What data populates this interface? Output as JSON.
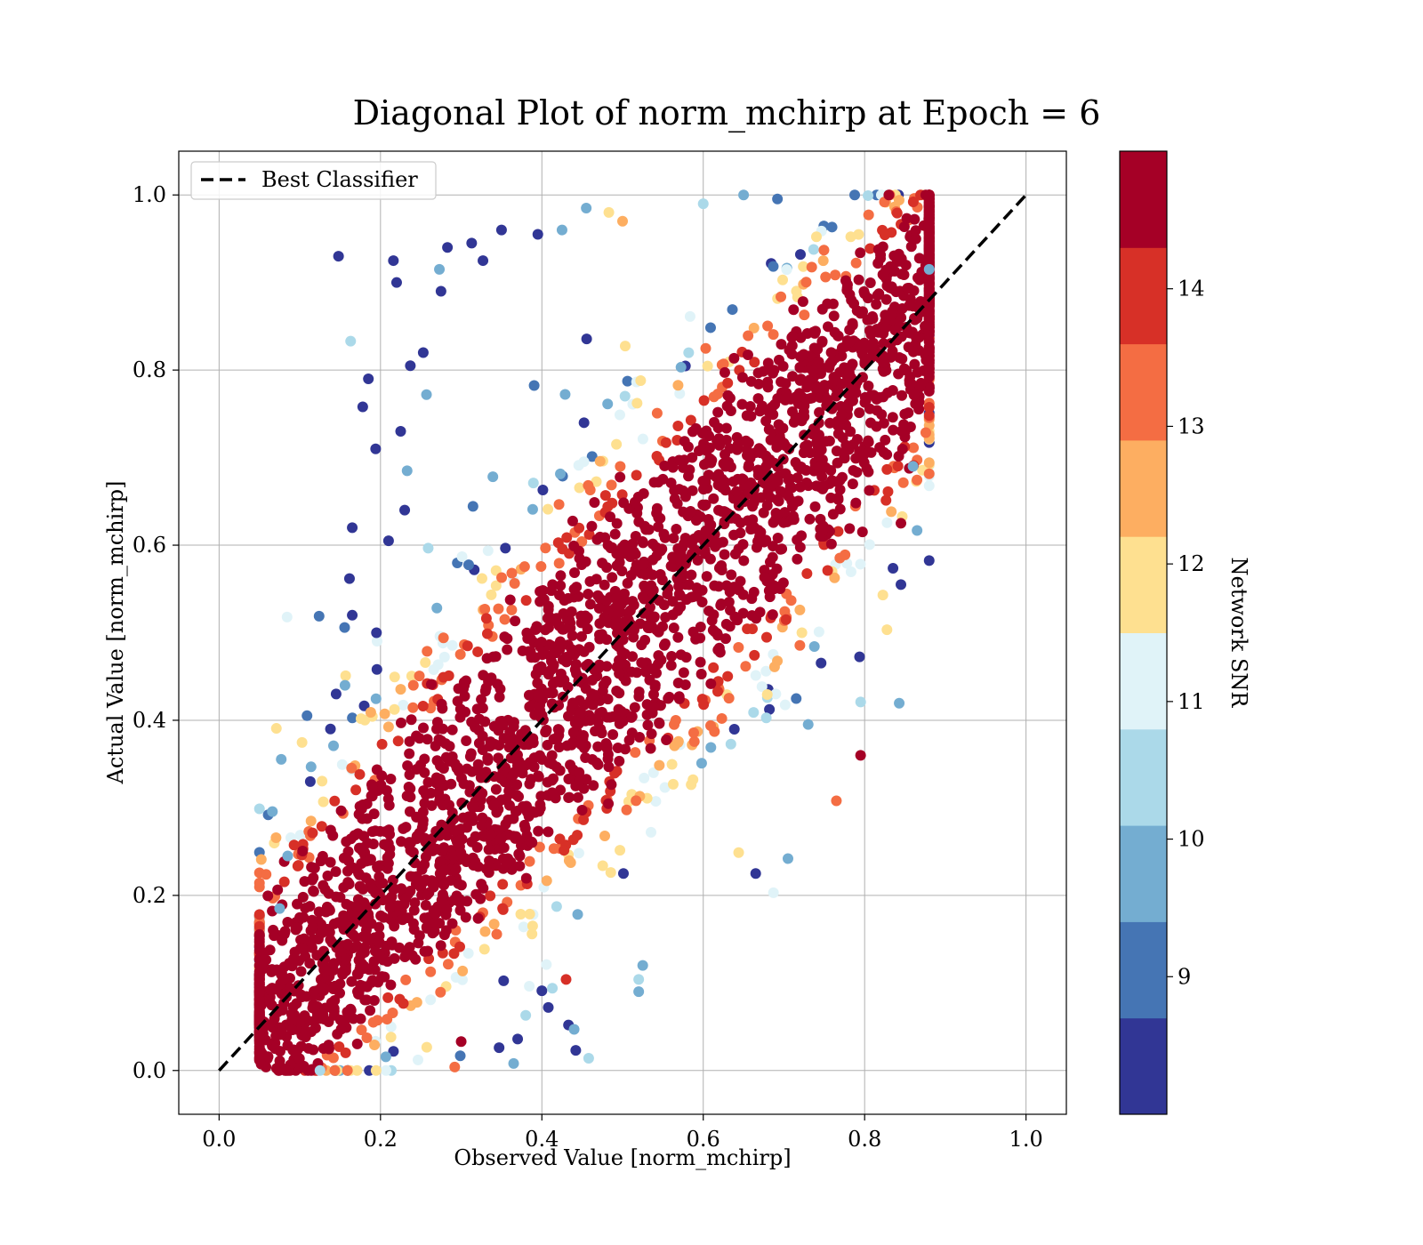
{
  "chart_data": {
    "type": "scatter",
    "title": "Diagonal Plot of norm_mchirp at Epoch = 6",
    "xlabel": "Observed Value [norm_mchirp]",
    "ylabel": "Actual Value [norm_mchirp]",
    "xlim": [
      -0.05,
      1.05
    ],
    "ylim": [
      -0.05,
      1.05
    ],
    "x_ticks": [
      "0.0",
      "0.2",
      "0.4",
      "0.6",
      "0.8",
      "1.0"
    ],
    "y_ticks": [
      "0.0",
      "0.2",
      "0.4",
      "0.6",
      "0.8",
      "1.0"
    ],
    "grid": true,
    "legend": {
      "placement": "top-left",
      "entries": [
        "Best Classifier"
      ]
    },
    "reference_line": {
      "name": "Best Classifier",
      "x": [
        0.0,
        1.0
      ],
      "y": [
        0.0,
        1.0
      ],
      "style": "dashed",
      "color": "#000000"
    },
    "colorbar": {
      "label": "Network SNR",
      "ticks": [
        "9",
        "10",
        "11",
        "12",
        "13",
        "14"
      ],
      "range": [
        8.0,
        15.0
      ],
      "colors": [
        "#313695",
        "#4575b4",
        "#74add1",
        "#abd9e9",
        "#e0f3f8",
        "#fee090",
        "#fdae61",
        "#f46d43",
        "#d73027",
        "#a50026"
      ]
    },
    "scatter_description": {
      "core": {
        "x_range": [
          0.05,
          0.88
        ],
        "y_range": [
          0.0,
          1.0
        ],
        "color": "#a50026",
        "trend": "along diagonal"
      },
      "low_snr_spread": "outliers mostly above diagonal"
    },
    "outlier_points": [
      {
        "x": 0.148,
        "y": 0.93,
        "c": 8.2
      },
      {
        "x": 0.216,
        "y": 0.925,
        "c": 8.3
      },
      {
        "x": 0.22,
        "y": 0.9,
        "c": 8.4
      },
      {
        "x": 0.283,
        "y": 0.94,
        "c": 8.3
      },
      {
        "x": 0.313,
        "y": 0.945,
        "c": 8.2
      },
      {
        "x": 0.35,
        "y": 0.96,
        "c": 8.5
      },
      {
        "x": 0.327,
        "y": 0.925,
        "c": 8.3
      },
      {
        "x": 0.275,
        "y": 0.89,
        "c": 8.6
      },
      {
        "x": 0.273,
        "y": 0.915,
        "c": 9.9
      },
      {
        "x": 0.237,
        "y": 0.805,
        "c": 8.3
      },
      {
        "x": 0.253,
        "y": 0.82,
        "c": 8.2
      },
      {
        "x": 0.185,
        "y": 0.79,
        "c": 8.4
      },
      {
        "x": 0.178,
        "y": 0.758,
        "c": 8.5
      },
      {
        "x": 0.163,
        "y": 0.833,
        "c": 10.2
      },
      {
        "x": 0.225,
        "y": 0.73,
        "c": 8.3
      },
      {
        "x": 0.194,
        "y": 0.71,
        "c": 8.4
      },
      {
        "x": 0.257,
        "y": 0.772,
        "c": 9.8
      },
      {
        "x": 0.233,
        "y": 0.685,
        "c": 9.7
      },
      {
        "x": 0.165,
        "y": 0.62,
        "c": 8.2
      },
      {
        "x": 0.23,
        "y": 0.64,
        "c": 8.5
      },
      {
        "x": 0.21,
        "y": 0.605,
        "c": 8.3
      },
      {
        "x": 0.195,
        "y": 0.5,
        "c": 8.4
      },
      {
        "x": 0.165,
        "y": 0.52,
        "c": 8.2
      },
      {
        "x": 0.156,
        "y": 0.44,
        "c": 9.6
      },
      {
        "x": 0.145,
        "y": 0.43,
        "c": 8.3
      },
      {
        "x": 0.138,
        "y": 0.39,
        "c": 8.5
      },
      {
        "x": 0.113,
        "y": 0.33,
        "c": 8.2
      },
      {
        "x": 0.085,
        "y": 0.245,
        "c": 10.1
      },
      {
        "x": 0.075,
        "y": 0.185,
        "c": 9.6
      },
      {
        "x": 0.395,
        "y": 0.955,
        "c": 8.3
      },
      {
        "x": 0.425,
        "y": 0.96,
        "c": 9.8
      },
      {
        "x": 0.455,
        "y": 0.985,
        "c": 9.7
      },
      {
        "x": 0.483,
        "y": 0.98,
        "c": 11.5
      },
      {
        "x": 0.5,
        "y": 0.97,
        "c": 12.3
      },
      {
        "x": 0.795,
        "y": 0.36,
        "c": 14.6
      },
      {
        "x": 0.765,
        "y": 0.308,
        "c": 13.2
      },
      {
        "x": 0.705,
        "y": 0.242,
        "c": 10.0
      },
      {
        "x": 0.687,
        "y": 0.203,
        "c": 11.4
      },
      {
        "x": 0.665,
        "y": 0.225,
        "c": 8.3
      },
      {
        "x": 0.525,
        "y": 0.12,
        "c": 9.7
      },
      {
        "x": 0.52,
        "y": 0.09,
        "c": 9.6
      },
      {
        "x": 0.52,
        "y": 0.104,
        "c": 10.2
      },
      {
        "x": 0.442,
        "y": 0.023,
        "c": 8.3
      },
      {
        "x": 0.458,
        "y": 0.014,
        "c": 10.4
      },
      {
        "x": 0.365,
        "y": 0.008,
        "c": 9.6
      },
      {
        "x": 0.37,
        "y": 0.036,
        "c": 8.4
      },
      {
        "x": 0.38,
        "y": 0.063,
        "c": 10.5
      },
      {
        "x": 0.408,
        "y": 0.072,
        "c": 8.3
      },
      {
        "x": 0.433,
        "y": 0.052,
        "c": 8.4
      },
      {
        "x": 0.44,
        "y": 0.047,
        "c": 9.5
      },
      {
        "x": 0.43,
        "y": 0.104,
        "c": 14.2
      },
      {
        "x": 0.413,
        "y": 0.094,
        "c": 10.3
      },
      {
        "x": 0.4,
        "y": 0.091,
        "c": 8.2
      },
      {
        "x": 0.845,
        "y": 0.555,
        "c": 8.4
      },
      {
        "x": 0.86,
        "y": 0.69,
        "c": 9.6
      },
      {
        "x": 0.88,
        "y": 0.915,
        "c": 10.1
      },
      {
        "x": 0.87,
        "y": 0.785,
        "c": 14.7
      },
      {
        "x": 0.845,
        "y": 0.625,
        "c": 14.8
      },
      {
        "x": 0.83,
        "y": 1.0,
        "c": 14.8
      },
      {
        "x": 0.6,
        "y": 0.99,
        "c": 10.4
      },
      {
        "x": 0.65,
        "y": 1.0,
        "c": 9.6
      },
      {
        "x": 0.125,
        "y": 0.0,
        "c": 10.3
      },
      {
        "x": 0.105,
        "y": 0.005,
        "c": 14.7
      },
      {
        "x": 0.292,
        "y": 0.004,
        "c": 13.3
      },
      {
        "x": 0.3,
        "y": 0.033,
        "c": 14.6
      },
      {
        "x": 0.347,
        "y": 0.026,
        "c": 8.5
      }
    ]
  }
}
